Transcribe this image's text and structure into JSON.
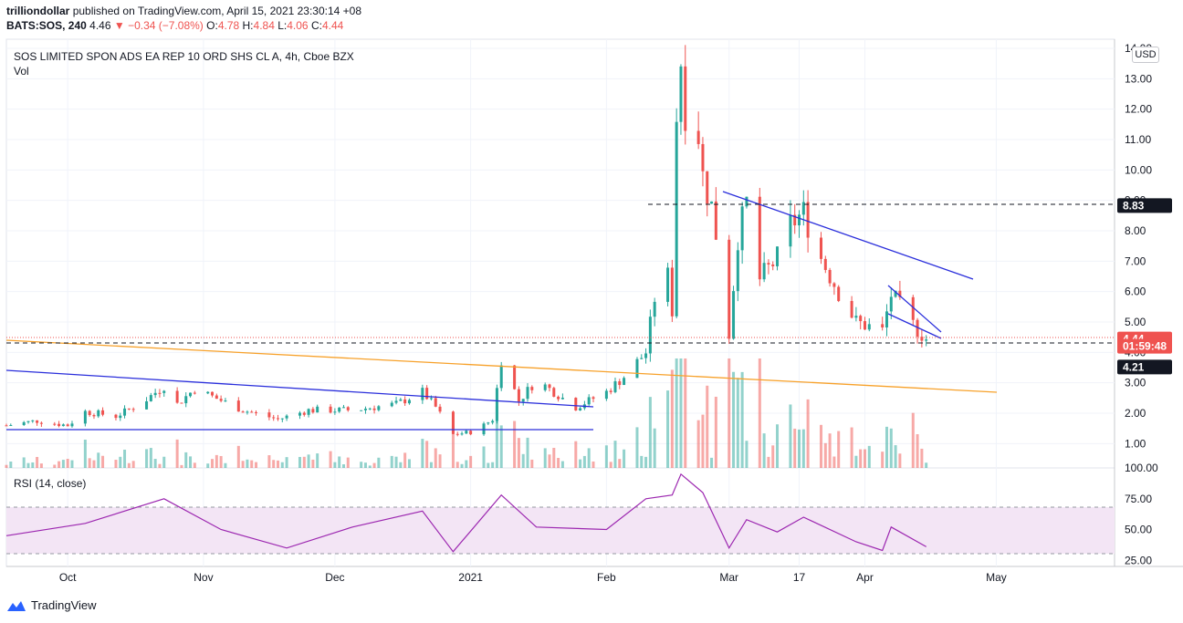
{
  "header": {
    "author": "trilliondollar",
    "published_text": "published on TradingView.com, April 15, 2021 23:30:14 +08",
    "symbol": "BATS:SOS, 240",
    "price": "4.46",
    "change": "▼ −0.34 (−7.08%)",
    "o_label": "O:",
    "o_val": "4.78",
    "h_label": "H:",
    "h_val": "4.84",
    "l_label": "L:",
    "l_val": "4.06",
    "c_label": "C:",
    "c_val": "4.44"
  },
  "legend": {
    "title": "SOS LIMITED SPON ADS EA REP 10 ORD SHS CL A, 4h, Cboe BZX",
    "vol": "Vol"
  },
  "currency": "USD",
  "footer": {
    "brand": "TradingView"
  },
  "colors": {
    "up": "#26a69a",
    "down": "#ef5350",
    "trendline": "#2a2edb",
    "orange": "#f7a12a",
    "rsi": "#9c27b0",
    "rsi_band": "#f3e5f5"
  },
  "chart_data": [
    {
      "type": "candlestick",
      "title": "SOS LIMITED SPON ADS EA REP 10 ORD SHS CL A, 4h, Cboe BZX",
      "x_ticks": [
        "Oct",
        "Nov",
        "Dec",
        "2021",
        "Feb",
        "Mar",
        "17",
        "Apr",
        "May"
      ],
      "y_ticks": [
        1,
        2,
        3,
        4,
        5,
        6,
        7,
        8,
        9,
        10,
        11,
        12,
        13,
        14
      ],
      "ylim": [
        0.2,
        14.3
      ],
      "xlim": [
        "2020-09-17",
        "2021-05-28"
      ],
      "price_labels": [
        {
          "label": "8.83",
          "value": 8.83
        },
        {
          "label": "4.44",
          "value": 4.44
        },
        {
          "label": "01:59:48",
          "value": 4.2
        },
        {
          "label": "4.21",
          "value": 3.52
        }
      ],
      "closes": [
        {
          "date": "2020-09-17",
          "close": 1.6
        },
        {
          "date": "2020-09-24",
          "close": 1.75
        },
        {
          "date": "2020-10-01",
          "close": 1.6
        },
        {
          "date": "2020-10-05",
          "close": 2.05
        },
        {
          "date": "2020-10-12",
          "close": 1.9
        },
        {
          "date": "2020-10-18",
          "close": 2.35
        },
        {
          "date": "2020-10-23",
          "close": 2.9
        },
        {
          "date": "2020-10-26",
          "close": 2.3
        },
        {
          "date": "2020-10-30",
          "close": 2.8
        },
        {
          "date": "2020-11-10",
          "close": 2.1
        },
        {
          "date": "2020-11-18",
          "close": 1.8
        },
        {
          "date": "2020-11-25",
          "close": 2.1
        },
        {
          "date": "2020-12-05",
          "close": 2.1
        },
        {
          "date": "2020-12-15",
          "close": 2.3
        },
        {
          "date": "2020-12-21",
          "close": 2.7
        },
        {
          "date": "2020-12-24",
          "close": 2.2
        },
        {
          "date": "2020-12-28",
          "close": 1.3
        },
        {
          "date": "2021-01-02",
          "close": 1.4
        },
        {
          "date": "2021-01-06",
          "close": 1.8
        },
        {
          "date": "2021-01-08",
          "close": 3.8
        },
        {
          "date": "2021-01-12",
          "close": 2.4
        },
        {
          "date": "2021-01-16",
          "close": 3.1
        },
        {
          "date": "2021-01-25",
          "close": 2.2
        },
        {
          "date": "2021-02-01",
          "close": 2.7
        },
        {
          "date": "2021-02-05",
          "close": 3.2
        },
        {
          "date": "2021-02-10",
          "close": 4.0
        },
        {
          "date": "2021-02-14",
          "close": 7.6
        },
        {
          "date": "2021-02-16",
          "close": 5.4
        },
        {
          "date": "2021-02-17",
          "close": 11.8
        },
        {
          "date": "2021-02-18",
          "close": 13.6
        },
        {
          "date": "2021-02-19",
          "close": 12.0
        },
        {
          "date": "2021-02-22",
          "close": 11.2
        },
        {
          "date": "2021-02-23",
          "close": 9.8
        },
        {
          "date": "2021-02-25",
          "close": 8.8
        },
        {
          "date": "2021-02-27",
          "close": 7.0
        },
        {
          "date": "2021-03-01",
          "close": 4.6
        },
        {
          "date": "2021-03-03",
          "close": 7.8
        },
        {
          "date": "2021-03-05",
          "close": 8.9
        },
        {
          "date": "2021-03-08",
          "close": 6.4
        },
        {
          "date": "2021-03-12",
          "close": 7.1
        },
        {
          "date": "2021-03-15",
          "close": 8.2
        },
        {
          "date": "2021-03-18",
          "close": 8.6
        },
        {
          "date": "2021-03-22",
          "close": 7.1
        },
        {
          "date": "2021-03-26",
          "close": 6.0
        },
        {
          "date": "2021-03-30",
          "close": 5.0
        },
        {
          "date": "2021-04-05",
          "close": 4.7
        },
        {
          "date": "2021-04-07",
          "close": 5.9
        },
        {
          "date": "2021-04-12",
          "close": 4.9
        },
        {
          "date": "2021-04-15",
          "close": 4.44
        }
      ],
      "horizontal_levels": [
        8.83,
        4.21
      ],
      "volume_pane": {
        "label": "Vol"
      }
    },
    {
      "type": "line",
      "title": "RSI (14, close)",
      "y_ticks": [
        "100.00",
        "75.00",
        "50.00",
        "25.00"
      ],
      "ylim": [
        20,
        100
      ],
      "band": [
        30,
        70
      ],
      "series": [
        {
          "x": [
            "2020-09-17",
            "2020-10-05",
            "2020-10-23",
            "2020-11-05",
            "2020-11-20",
            "2020-12-05",
            "2020-12-21",
            "2020-12-28",
            "2021-01-08",
            "2021-01-16",
            "2021-02-01",
            "2021-02-10",
            "2021-02-16",
            "2021-02-18",
            "2021-02-23",
            "2021-03-01",
            "2021-03-05",
            "2021-03-12",
            "2021-03-18",
            "2021-03-30",
            "2021-04-05",
            "2021-04-07",
            "2021-04-15"
          ],
          "values": [
            45,
            55,
            75,
            50,
            35,
            52,
            65,
            32,
            78,
            52,
            50,
            75,
            78,
            95,
            80,
            35,
            58,
            48,
            60,
            40,
            33,
            52,
            36
          ]
        }
      ]
    }
  ]
}
